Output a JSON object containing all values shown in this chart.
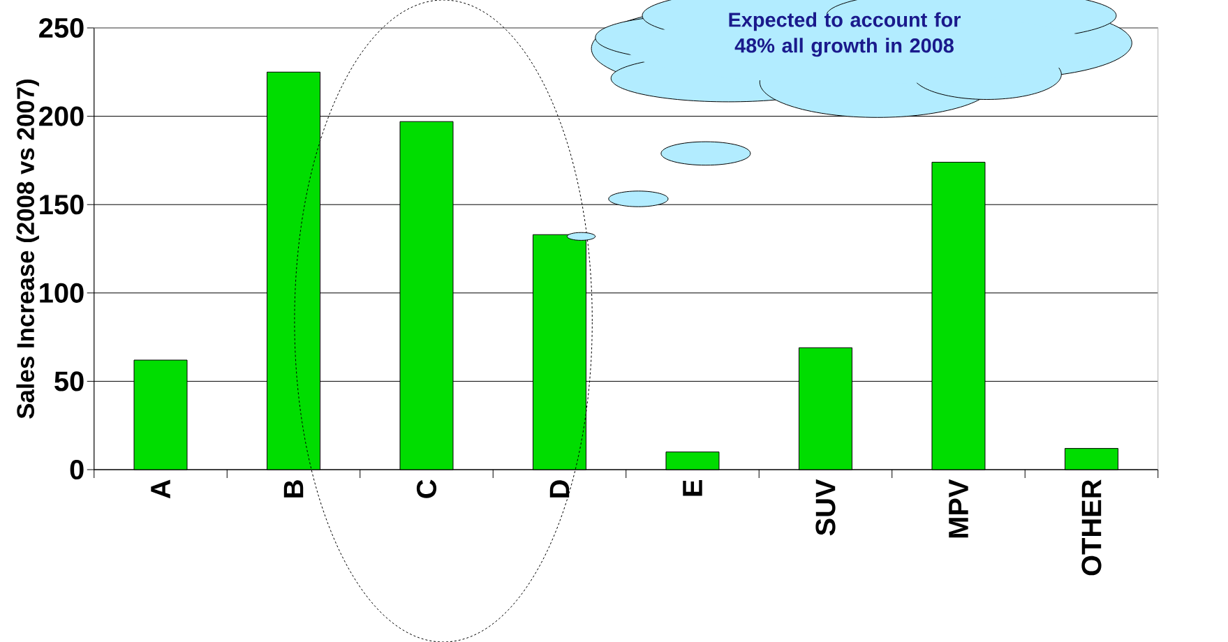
{
  "chart_data": {
    "type": "bar",
    "ylabel": "Sales Increase (2008 vs 2007)",
    "categories": [
      "A",
      "B",
      "C",
      "D",
      "E",
      "SUV",
      "MPV",
      "OTHER"
    ],
    "values": [
      62,
      225,
      197,
      133,
      10,
      69,
      174,
      12
    ],
    "color": "#00dd00",
    "ylim": [
      0,
      250
    ],
    "yticks": [
      0,
      50,
      100,
      150,
      200,
      250
    ],
    "grid": "y",
    "annotations": [
      "Expected to account for 48% all growth in 2008"
    ]
  }
}
